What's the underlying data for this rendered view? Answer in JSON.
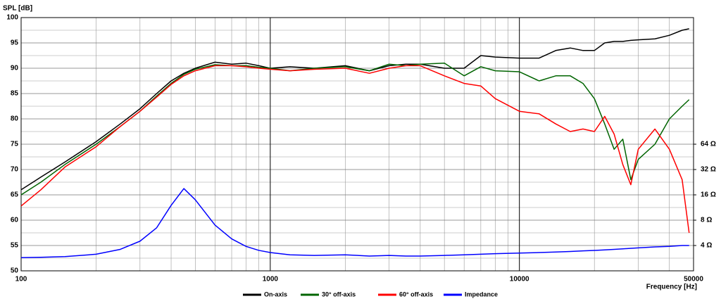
{
  "chart_data": {
    "type": "line",
    "y_label": "SPL [dB]",
    "x_label": "Frequency [Hz]",
    "log_x": true,
    "log_y2": true,
    "grid": true,
    "xlim": [
      100,
      50000
    ],
    "xticks": [
      100,
      1000,
      10000,
      50000
    ],
    "xminor": [
      200,
      300,
      400,
      500,
      600,
      700,
      800,
      900,
      2000,
      3000,
      4000,
      5000,
      6000,
      7000,
      8000,
      9000,
      20000,
      30000,
      40000
    ],
    "ylim": [
      50,
      100
    ],
    "yticks": [
      50,
      55,
      60,
      65,
      70,
      75,
      80,
      85,
      90,
      95,
      100
    ],
    "yminor": [
      52.5,
      57.5,
      62.5,
      67.5,
      72.5,
      77.5,
      82.5,
      87.5,
      92.5,
      97.5
    ],
    "y2lim": [
      2,
      2048
    ],
    "y2ticks": [
      {
        "value": 4,
        "label": "4 Ω"
      },
      {
        "value": 8,
        "label": "8 Ω"
      },
      {
        "value": 16,
        "label": "16 Ω"
      },
      {
        "value": 32,
        "label": "32 Ω"
      },
      {
        "value": 64,
        "label": "64 Ω"
      }
    ],
    "x": [
      100,
      120,
      150,
      200,
      250,
      300,
      350,
      400,
      450,
      500,
      600,
      700,
      800,
      900,
      1000,
      1200,
      1500,
      2000,
      2500,
      3000,
      3500,
      4000,
      5000,
      6000,
      7000,
      8000,
      10000,
      12000,
      14000,
      16000,
      18000,
      20000,
      22000,
      24000,
      26000,
      28000,
      30000,
      35000,
      40000,
      45000,
      48000
    ],
    "series": [
      {
        "name": "On-axis",
        "color": "#000000",
        "values": [
          66,
          68.5,
          71.5,
          75.5,
          79,
          82,
          85,
          87.5,
          89,
          90,
          91.2,
          90.8,
          91,
          90.5,
          90,
          90.3,
          90,
          90.5,
          89.5,
          90.5,
          90.8,
          90.8,
          90,
          90,
          92.5,
          92.2,
          92,
          92,
          93.5,
          94,
          93.5,
          93.5,
          95,
          95.3,
          95.3,
          95.5,
          95.6,
          95.8,
          96.5,
          97.5,
          97.8
        ]
      },
      {
        "name": "30° off-axis",
        "color": "#006400",
        "values": [
          65,
          67.5,
          71,
          75,
          78.5,
          81.5,
          84.5,
          87,
          88.8,
          89.8,
          90.7,
          90.5,
          90.5,
          90.2,
          90,
          89.5,
          90,
          90.3,
          89.5,
          90.8,
          90.5,
          90.8,
          91,
          88.5,
          90.3,
          89.5,
          89.3,
          87.5,
          88.5,
          88.5,
          87,
          84,
          79,
          74,
          76,
          68,
          72,
          75,
          80,
          82.5,
          83.8
        ]
      },
      {
        "name": "60° off-axis",
        "color": "#ff0000",
        "values": [
          62.8,
          66,
          70.5,
          74.5,
          78.5,
          81.5,
          84.3,
          86.8,
          88.5,
          89.5,
          90.5,
          90.5,
          90.3,
          90,
          89.8,
          89.5,
          89.8,
          90,
          89,
          90,
          90.5,
          90.5,
          88.5,
          87,
          86.5,
          84,
          81.5,
          81,
          79,
          77.5,
          78,
          77.5,
          80.5,
          77,
          71,
          67,
          74,
          78,
          74,
          68,
          57.5
        ]
      },
      {
        "name": "Impedance",
        "color": "#0000ff",
        "axis": "y2",
        "values": [
          2.87,
          2.9,
          2.95,
          3.15,
          3.6,
          4.5,
          6.5,
          12,
          19,
          14,
          7,
          4.8,
          3.9,
          3.5,
          3.3,
          3.1,
          3.05,
          3.1,
          3,
          3.05,
          3,
          3,
          3.05,
          3.1,
          3.15,
          3.2,
          3.25,
          3.3,
          3.35,
          3.4,
          3.45,
          3.5,
          3.55,
          3.6,
          3.65,
          3.7,
          3.75,
          3.85,
          3.9,
          4,
          4
        ]
      }
    ]
  }
}
